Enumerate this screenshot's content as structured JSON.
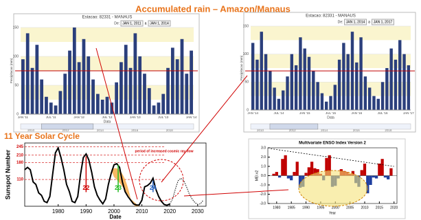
{
  "slide": {
    "title": "Accumulated rain – Amazon/Manaus",
    "subtitle": "11 Year Solar Cycle"
  },
  "chart_data": [
    {
      "type": "bar",
      "title": "Estacao: 82331 - MANAUS",
      "range_label": "De:",
      "start": "JAN 1, 2011",
      "separator": "a",
      "end": "JAN 1, 2014",
      "y_label": "Precipitacao (mm)",
      "x_label": "Data",
      "categories": [
        "JAN '11",
        null,
        null,
        null,
        null,
        null,
        "JUL '11",
        null,
        null,
        null,
        null,
        null,
        "JAN '12",
        null,
        null,
        null,
        null,
        null,
        "JUL '12",
        null,
        null,
        null,
        null,
        null,
        "JAN '13",
        null,
        null,
        null,
        null,
        null,
        "JUL '13",
        null,
        null,
        null,
        null,
        null,
        "JAN '14"
      ],
      "values": [
        95,
        140,
        80,
        120,
        60,
        30,
        20,
        15,
        40,
        70,
        110,
        150,
        90,
        130,
        100,
        60,
        35,
        25,
        30,
        20,
        55,
        90,
        120,
        80,
        140,
        100,
        70,
        45,
        15,
        20,
        35,
        80,
        115,
        95,
        130,
        70,
        110
      ],
      "color": "#2b3f7c",
      "ylim": [
        0,
        150
      ],
      "yticks": [
        0,
        50,
        100,
        150
      ],
      "reference_line": 75,
      "reference_color": "#c00000",
      "navigator_labels": [
        "2010",
        "2012",
        "2014",
        "2016",
        "2018"
      ]
    },
    {
      "type": "bar",
      "title": "Estacao: 82331 - MANAUS",
      "range_label": "De:",
      "start": "JAN 1, 2014",
      "separator": "a",
      "end": "JAN 1, 2017",
      "y_label": "Precipitacao (mm)",
      "x_label": "Data",
      "categories": [
        "JAN '14",
        null,
        null,
        null,
        null,
        null,
        "JUL '14",
        null,
        null,
        null,
        null,
        null,
        "JAN '15",
        null,
        null,
        null,
        null,
        null,
        "JUL '15",
        null,
        null,
        null,
        null,
        null,
        "JAN '16",
        null,
        null,
        null,
        null,
        null,
        "JUL '16",
        null,
        null,
        null,
        null,
        null,
        "JAN '17"
      ],
      "values": [
        120,
        90,
        140,
        100,
        70,
        40,
        20,
        35,
        60,
        100,
        80,
        130,
        110,
        95,
        70,
        50,
        30,
        15,
        25,
        45,
        90,
        120,
        100,
        140,
        85,
        130,
        60,
        40,
        25,
        20,
        50,
        75,
        110,
        90,
        125,
        100,
        80
      ],
      "color": "#2b3f7c",
      "ylim": [
        0,
        150
      ],
      "yticks": [
        0,
        50,
        100,
        150
      ],
      "reference_line": 70,
      "reference_color": "#c00000",
      "navigator_labels": [
        "2010",
        "2012",
        "2014",
        "2016",
        "2018"
      ]
    },
    {
      "type": "line",
      "y_label": "Sunspot Number",
      "x_label": "Date",
      "xlim": [
        1968,
        2033
      ],
      "xticks": [
        1980,
        1990,
        2000,
        2010,
        2020,
        2030
      ],
      "ylim": [
        0,
        260
      ],
      "yticks": [
        110,
        180,
        210,
        245
      ],
      "tick_color": "#d00000",
      "series": [
        {
          "color": "#000000",
          "x": [
            1968,
            1969,
            1970,
            1971,
            1972,
            1973,
            1974,
            1975,
            1976,
            1977,
            1978,
            1979,
            1980,
            1981,
            1982,
            1983,
            1984,
            1985,
            1986,
            1987,
            1988,
            1989,
            1990,
            1991,
            1992,
            1993,
            1994,
            1995,
            1996,
            1997,
            1998,
            1999,
            2000,
            2001,
            2002,
            2003,
            2004,
            2005,
            2006,
            2007,
            2008,
            2009,
            2010,
            2011,
            2012,
            2013,
            2014,
            2015,
            2016,
            2017,
            2018,
            2019,
            2020
          ],
          "values": [
            150,
            160,
            150,
            100,
            90,
            55,
            45,
            20,
            15,
            40,
            130,
            220,
            240,
            200,
            150,
            90,
            60,
            20,
            15,
            40,
            130,
            200,
            215,
            190,
            140,
            80,
            45,
            25,
            10,
            30,
            90,
            135,
            170,
            175,
            160,
            100,
            60,
            40,
            25,
            10,
            5,
            5,
            25,
            80,
            85,
            95,
            115,
            70,
            40,
            20,
            7,
            4,
            9
          ]
        },
        {
          "color": "#000000",
          "dashed": true,
          "x": [
            2020,
            2021,
            2022,
            2023,
            2024,
            2025,
            2026,
            2027,
            2028,
            2029,
            2030,
            2031,
            2032
          ],
          "values": [
            9,
            30,
            70,
            105,
            115,
            105,
            80,
            50,
            30,
            15,
            8,
            10,
            25
          ]
        }
      ],
      "annotations": [
        "22",
        "23",
        "24",
        "period of increased cosmic ray flow"
      ],
      "annotation_colors": [
        "#d00000",
        "#22bb22",
        "#1f5fbf",
        "#d00000"
      ]
    },
    {
      "type": "bar",
      "title": "Multivariate ENSO Index Version 2",
      "y_label": "MEI.v2",
      "x_label": "Year",
      "x": [
        1979,
        1980,
        1981,
        1982,
        1983,
        1984,
        1985,
        1986,
        1987,
        1988,
        1989,
        1990,
        1991,
        1992,
        1993,
        1994,
        1995,
        1996,
        1997,
        1998,
        1999,
        2000,
        2001,
        2002,
        2003,
        2004,
        2005,
        2006,
        2007,
        2008,
        2009,
        2010,
        2011,
        2012,
        2013,
        2014,
        2015,
        2016,
        2017,
        2018,
        2019
      ],
      "values": [
        0.2,
        0.4,
        -0.2,
        1.8,
        2.2,
        -0.3,
        -0.5,
        0.4,
        1.5,
        -1.3,
        -1.2,
        0.3,
        0.9,
        1.5,
        0.8,
        0.7,
        0.2,
        -0.5,
        1.9,
        2.2,
        -1.2,
        -1.1,
        -0.3,
        0.7,
        0.5,
        0.4,
        0.2,
        0.5,
        -0.8,
        -1.2,
        0.6,
        1.3,
        -1.9,
        -1.0,
        -0.2,
        -0.3,
        1.3,
        1.8,
        -0.2,
        -0.4,
        0.8
      ],
      "positive_color": "#c00000",
      "negative_color": "#1f3f9f",
      "xlim": [
        1977,
        2021
      ],
      "xticks": [
        1980,
        1985,
        1990,
        1995,
        2000,
        2005,
        2010,
        2015,
        2020
      ],
      "ylim": [
        -3,
        3
      ],
      "yticks": [
        {
          "value": -3,
          "label": "-3.0"
        },
        {
          "value": -2,
          "label": "-2.0"
        },
        {
          "value": -1,
          "label": "-1.0"
        },
        {
          "value": 0,
          "label": "0.0"
        },
        {
          "value": 1,
          "label": "1.0"
        },
        {
          "value": 2,
          "label": "2.0"
        },
        {
          "value": 3,
          "label": "3.0"
        }
      ]
    }
  ]
}
